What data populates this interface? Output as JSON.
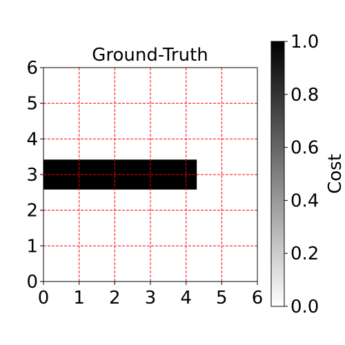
{
  "chart_data": {
    "type": "heatmap",
    "title": "Ground-Truth",
    "xlim": [
      0,
      6
    ],
    "ylim": [
      0,
      6
    ],
    "xticks": [
      "0",
      "1",
      "2",
      "3",
      "4",
      "5",
      "6"
    ],
    "yticks": [
      "0",
      "1",
      "2",
      "3",
      "4",
      "5",
      "6"
    ],
    "grid": true,
    "grid_color": "#ff0000",
    "grid_style": "dashed",
    "cells": [
      {
        "x0": 0,
        "x1": 4.3,
        "y0": 2.58,
        "y1": 3.42,
        "value": 1.0
      }
    ],
    "colorbar": {
      "label": "Cost",
      "range": [
        0.0,
        1.0
      ],
      "ticks": [
        "0.0",
        "0.2",
        "0.4",
        "0.6",
        "0.8",
        "1.0"
      ],
      "colormap": "greys"
    }
  }
}
